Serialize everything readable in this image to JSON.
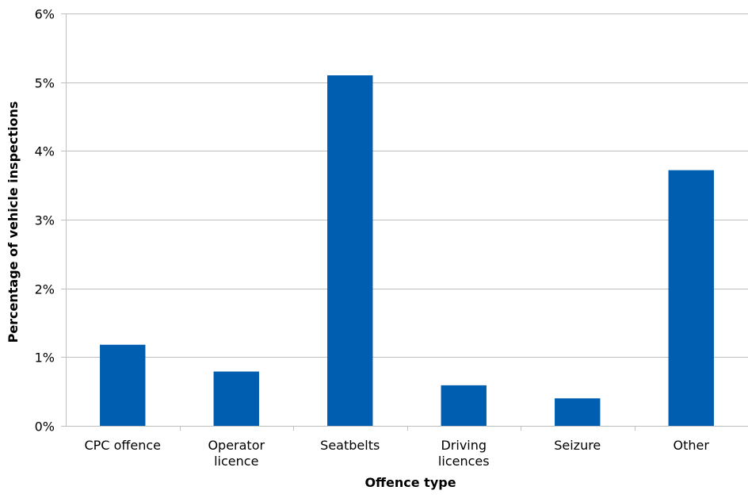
{
  "chart_data": {
    "type": "bar",
    "title": "",
    "xlabel": "Offence type",
    "ylabel": "Percentage of vehicle inspections",
    "categories": [
      [
        "CPC offence"
      ],
      [
        "Operator",
        "licence"
      ],
      [
        "Seatbelts"
      ],
      [
        "Driving",
        "licences"
      ],
      [
        "Seizure"
      ],
      [
        "Other"
      ]
    ],
    "values": [
      1.18,
      0.79,
      5.1,
      0.59,
      0.4,
      3.72
    ],
    "ylim": [
      0,
      6
    ],
    "yticks": [
      0,
      1,
      2,
      3,
      4,
      5,
      6
    ],
    "ytick_labels": [
      "0%",
      "1%",
      "2%",
      "3%",
      "4%",
      "5%",
      "6%"
    ],
    "unit": "%",
    "grid": true,
    "legend": "none",
    "bar_color": "#005EB0",
    "grid_color": "#BFBFBF",
    "axis_color": "#BFBFBF"
  }
}
